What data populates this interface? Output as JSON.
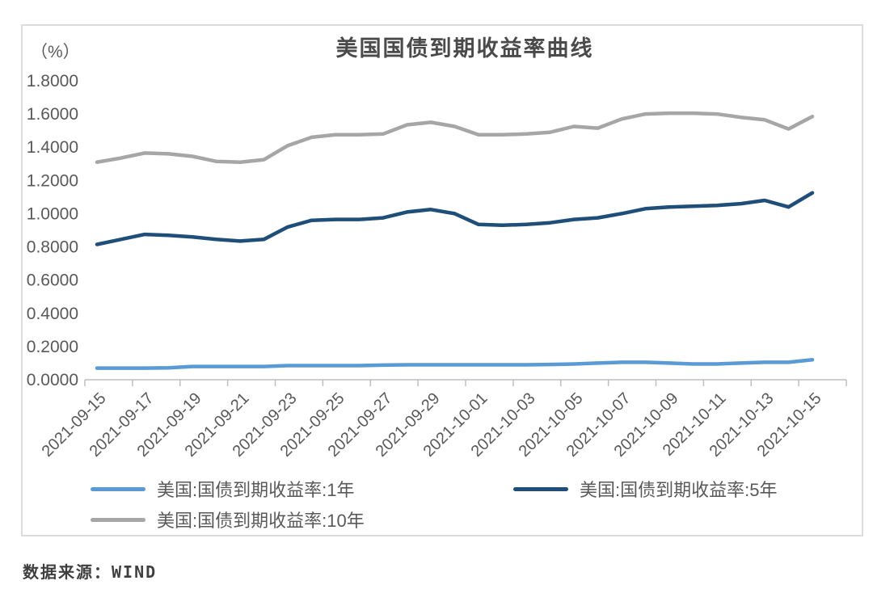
{
  "source_note": "数据来源：WIND",
  "chart_data": {
    "type": "line",
    "title": "美国国债到期收益率曲线",
    "unit_label": "（%）",
    "xlabel": "",
    "ylabel": "(%)",
    "ylim": [
      0,
      1.8
    ],
    "grid": false,
    "legend_position": "bottom",
    "axis_color": "#bfbfbf",
    "tick_label_color": "#595959",
    "y_tick_labels": [
      "0.0000",
      "0.2000",
      "0.4000",
      "0.6000",
      "0.8000",
      "1.0000",
      "1.2000",
      "1.4000",
      "1.6000",
      "1.8000"
    ],
    "x_tick_labels": [
      "2021-09-15",
      "2021-09-17",
      "2021-09-19",
      "2021-09-21",
      "2021-09-23",
      "2021-09-25",
      "2021-09-27",
      "2021-09-29",
      "2021-10-01",
      "2021-10-03",
      "2021-10-05",
      "2021-10-07",
      "2021-10-09",
      "2021-10-11",
      "2021-10-13",
      "2021-10-15"
    ],
    "x": [
      "2021-09-15",
      "2021-09-16",
      "2021-09-17",
      "2021-09-18",
      "2021-09-19",
      "2021-09-20",
      "2021-09-21",
      "2021-09-22",
      "2021-09-23",
      "2021-09-24",
      "2021-09-25",
      "2021-09-26",
      "2021-09-27",
      "2021-09-28",
      "2021-09-29",
      "2021-09-30",
      "2021-10-01",
      "2021-10-02",
      "2021-10-03",
      "2021-10-04",
      "2021-10-05",
      "2021-10-06",
      "2021-10-07",
      "2021-10-08",
      "2021-10-09",
      "2021-10-10",
      "2021-10-11",
      "2021-10-12",
      "2021-10-13",
      "2021-10-14",
      "2021-10-15"
    ],
    "series": [
      {
        "name": "美国:国债到期收益率:1年",
        "color": "#5b9bd5",
        "values": [
          0.07,
          0.07,
          0.07,
          0.072,
          0.08,
          0.08,
          0.08,
          0.08,
          0.085,
          0.085,
          0.085,
          0.085,
          0.088,
          0.09,
          0.09,
          0.09,
          0.09,
          0.09,
          0.09,
          0.092,
          0.095,
          0.1,
          0.105,
          0.105,
          0.1,
          0.095,
          0.095,
          0.1,
          0.105,
          0.105,
          0.12
        ]
      },
      {
        "name": "美国:国债到期收益率:5年",
        "color": "#1f4e79",
        "values": [
          0.815,
          0.845,
          0.875,
          0.87,
          0.86,
          0.845,
          0.835,
          0.845,
          0.92,
          0.96,
          0.965,
          0.965,
          0.975,
          1.01,
          1.025,
          1.0,
          0.935,
          0.93,
          0.935,
          0.945,
          0.965,
          0.975,
          1.0,
          1.03,
          1.04,
          1.045,
          1.05,
          1.06,
          1.08,
          1.04,
          1.125
        ]
      },
      {
        "name": "美国:国债到期收益率:10年",
        "color": "#a6a6a6",
        "values": [
          1.31,
          1.335,
          1.365,
          1.36,
          1.345,
          1.315,
          1.31,
          1.325,
          1.41,
          1.46,
          1.475,
          1.475,
          1.48,
          1.535,
          1.55,
          1.525,
          1.475,
          1.475,
          1.48,
          1.49,
          1.525,
          1.515,
          1.57,
          1.6,
          1.605,
          1.605,
          1.6,
          1.58,
          1.565,
          1.51,
          1.585
        ]
      }
    ]
  }
}
